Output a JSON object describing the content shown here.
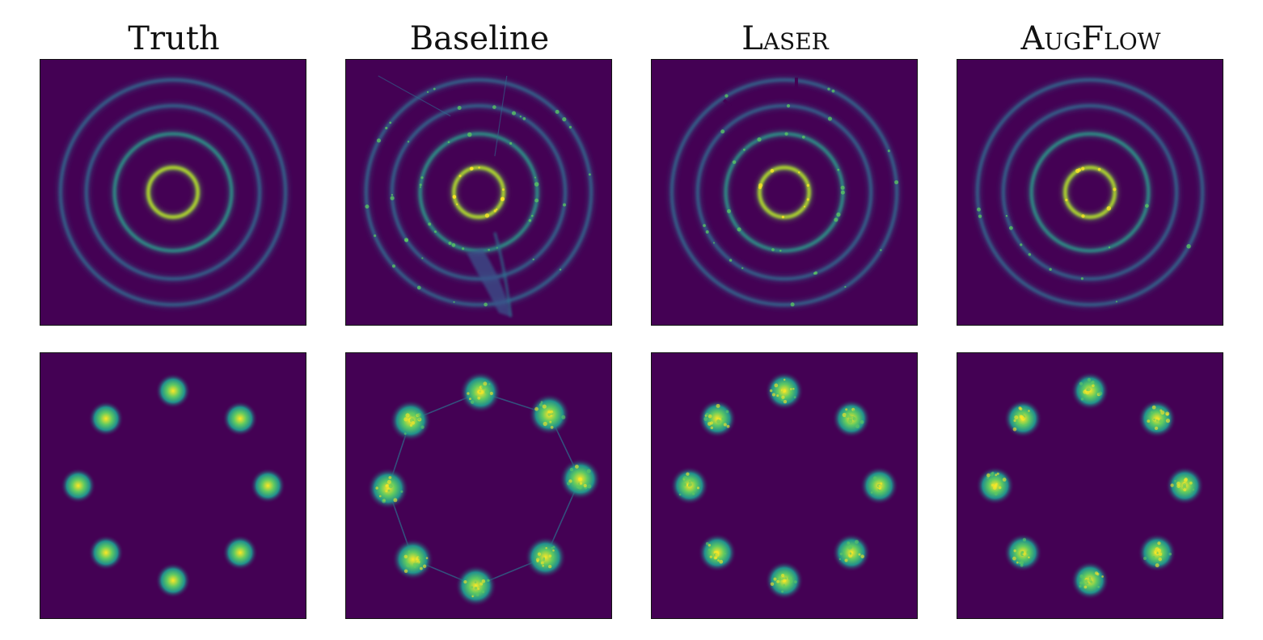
{
  "chart_data": {
    "type": "heatmap",
    "colormap": "viridis",
    "axes_visible": false,
    "columns": [
      {
        "title": "Truth"
      },
      {
        "title": "Baseline"
      },
      {
        "title": "Laser"
      },
      {
        "title": "AugFlow"
      }
    ],
    "rows": [
      {
        "distribution": "concentric rings",
        "ring_count": 4,
        "relative_ring_radii": [
          0.22,
          0.52,
          0.77,
          1.0
        ]
      },
      {
        "distribution": "gaussian mixture on a circle",
        "mode_count": 8
      }
    ],
    "colors": {
      "background": "#440154",
      "ring": "#21918c",
      "peak": "#fde725"
    }
  }
}
